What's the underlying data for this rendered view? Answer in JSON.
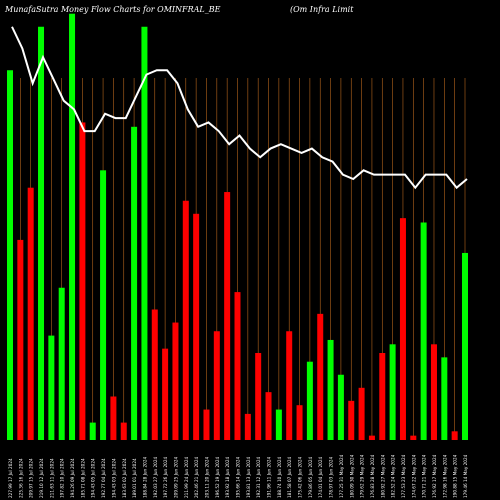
{
  "chart_data": {
    "type": "bar",
    "title_left": "MunafaSutra  Money Flow  Charts for OMINFRAL_BE",
    "title_right": "(Om Infra  Limit",
    "colors": {
      "up": "#00ff00",
      "down": "#ff0000",
      "line": "#ffffff",
      "grid": "#b5651d",
      "background": "#000000"
    },
    "categories": [
      "227.99 17 Jul 2024",
      "225.36 16 Jul 2024",
      "209.97 15 Jul 2024",
      "219.10 12 Jul 2024",
      "211.63 11 Jul 2024",
      "197.82 10 Jul 2024",
      "194.26 09 Jul 2024",
      "185.71 08 Jul 2024",
      "194.43 05 Jul 2024",
      "192.77 04 Jul 2024",
      "194.43 03 Jul 2024",
      "183.63 02 Jul 2024",
      "189.01 01 Jul 2024",
      "188.84 28 Jun 2024",
      "192.03 27 Jun 2024",
      "197.72 26 Jun 2024",
      "209.09 25 Jun 2024",
      "211.99 24 Jun 2024",
      "202.46 21 Jun 2024",
      "203.11 20 Jun 2024",
      "196.52 19 Jun 2024",
      "193.92 18 Jun 2024",
      "195.66 14 Jun 2024",
      "193.81 13 Jun 2024",
      "192.31 12 Jun 2024",
      "191.96 11 Jun 2024",
      "188.74 10 Jun 2024",
      "181.58 07 Jun 2024",
      "175.42 06 Jun 2024",
      "179.86 05 Jun 2024",
      "174.01 04 Jun 2024",
      "178.97 03 Jun 2024",
      "177.25 31 May 2024",
      "180.09 30 May 2024",
      "179.62 29 May 2024",
      "176.83 28 May 2024",
      "180.92 27 May 2024",
      "182.52 24 May 2024",
      "177.53 23 May 2024",
      "174.67 22 May 2024",
      "170.71 21 May 2024",
      "176.92 17 May 2024",
      "172.98 16 May 2024",
      "190.88 15 May 2024",
      "179.46 14 May 2024"
    ],
    "bar_colors": [
      "green",
      "red",
      "red",
      "green",
      "green",
      "green",
      "green",
      "red",
      "green",
      "green",
      "red",
      "red",
      "green",
      "green",
      "red",
      "red",
      "red",
      "red",
      "red",
      "red",
      "red",
      "red",
      "red",
      "red",
      "red",
      "red",
      "green",
      "red",
      "red",
      "green",
      "red",
      "green",
      "green",
      "red",
      "red",
      "red",
      "red",
      "green",
      "red",
      "red",
      "green",
      "red",
      "green",
      "red",
      "green"
    ],
    "values": [
      85,
      46,
      58,
      95,
      24,
      35,
      98,
      73,
      4,
      62,
      10,
      4,
      72,
      95,
      30,
      21,
      27,
      55,
      52,
      7,
      25,
      57,
      34,
      6,
      20,
      11,
      7,
      25,
      8,
      18,
      29,
      23,
      15,
      9,
      12,
      1,
      20,
      22,
      51,
      1,
      50,
      22,
      19,
      2,
      43
    ],
    "line": [
      95,
      90,
      82,
      88,
      83,
      78,
      76,
      71,
      71,
      75,
      74,
      74,
      79,
      84,
      85,
      85,
      82,
      76,
      72,
      73,
      71,
      68,
      70,
      67,
      65,
      67,
      68,
      67,
      66,
      67,
      65,
      64,
      61,
      60,
      62,
      61,
      61,
      61,
      61,
      58,
      61,
      61,
      61,
      58,
      60
    ],
    "ylim": [
      0,
      100
    ]
  }
}
